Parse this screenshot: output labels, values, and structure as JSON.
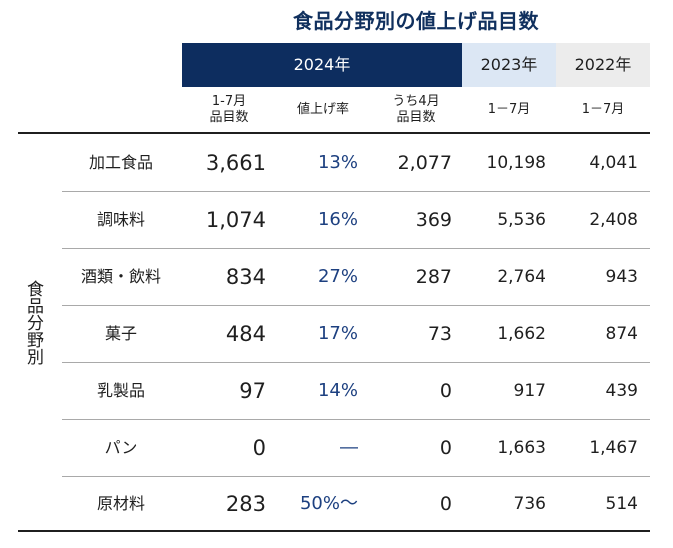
{
  "title": "食品分野別の値上げ品目数",
  "headers": {
    "y2024": "2024年",
    "y2023": "2023年",
    "y2022": "2022年"
  },
  "subheaders": {
    "items_2024": [
      "1-7月",
      "品目数"
    ],
    "rate": "値上げ率",
    "april": [
      "うち4月",
      "品目数"
    ],
    "period_2023": "1－7月",
    "period_2022": "1－7月"
  },
  "side_label": "食品分野別",
  "rows": [
    {
      "category": "加工食品",
      "items_2024": "3,661",
      "rate": "13%",
      "april": "2,077",
      "y2023": "10,198",
      "y2022": "4,041"
    },
    {
      "category": "調味料",
      "items_2024": "1,074",
      "rate": "16%",
      "april": "369",
      "y2023": "5,536",
      "y2022": "2,408"
    },
    {
      "category": "酒類・飲料",
      "items_2024": "834",
      "rate": "27%",
      "april": "287",
      "y2023": "2,764",
      "y2022": "943"
    },
    {
      "category": "菓子",
      "items_2024": "484",
      "rate": "17%",
      "april": "73",
      "y2023": "1,662",
      "y2022": "874"
    },
    {
      "category": "乳製品",
      "items_2024": "97",
      "rate": "14%",
      "april": "0",
      "y2023": "917",
      "y2022": "439"
    },
    {
      "category": "パン",
      "items_2024": "0",
      "rate": "―",
      "april": "0",
      "y2023": "1,663",
      "y2022": "1,467"
    },
    {
      "category": "原材料",
      "items_2024": "283",
      "rate": "50%～",
      "april": "0",
      "y2023": "736",
      "y2022": "514"
    }
  ],
  "colors": {
    "header_2024_bg": "#0d2d5f",
    "header_2023_bg": "#dce7f4",
    "header_2022_bg": "#ececec",
    "title": "#10305e",
    "rate_text": "#1d4080"
  }
}
